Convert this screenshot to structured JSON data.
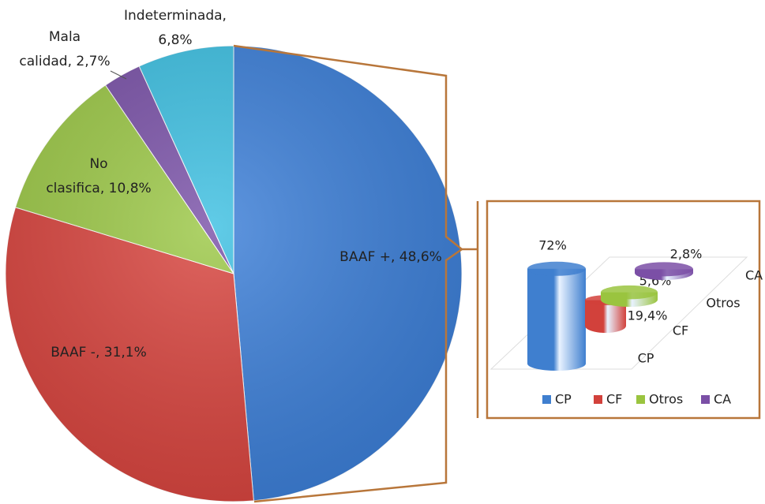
{
  "chart_data": [
    {
      "type": "pie",
      "values": [
        48.6,
        31.1,
        10.8,
        2.7,
        6.8
      ],
      "labels": [
        [
          "BAAF +, 48,6%"
        ],
        [
          "BAAF -, 31,1%"
        ],
        [
          "No",
          "clasifica, 10,8%"
        ],
        [
          "Mala",
          "calidad, 2,7%"
        ],
        [
          "Indeterminada,",
          "6,8%"
        ]
      ],
      "colors": [
        "#3c7fd8",
        "#d8443e",
        "#9cc847",
        "#7a52a8",
        "#3ec0e2"
      ]
    },
    {
      "type": "cylinder",
      "categories": [
        "CP",
        "CF",
        "Otros",
        "CA"
      ],
      "values": [
        72,
        19.4,
        5.6,
        2.8
      ],
      "value_labels": [
        "72%",
        "19,4%",
        "5,6%",
        "2,8%"
      ],
      "colors": [
        "#3f7fcf",
        "#d2413b",
        "#9ac43f",
        "#7b4fa6"
      ],
      "legend": "bottom"
    }
  ]
}
